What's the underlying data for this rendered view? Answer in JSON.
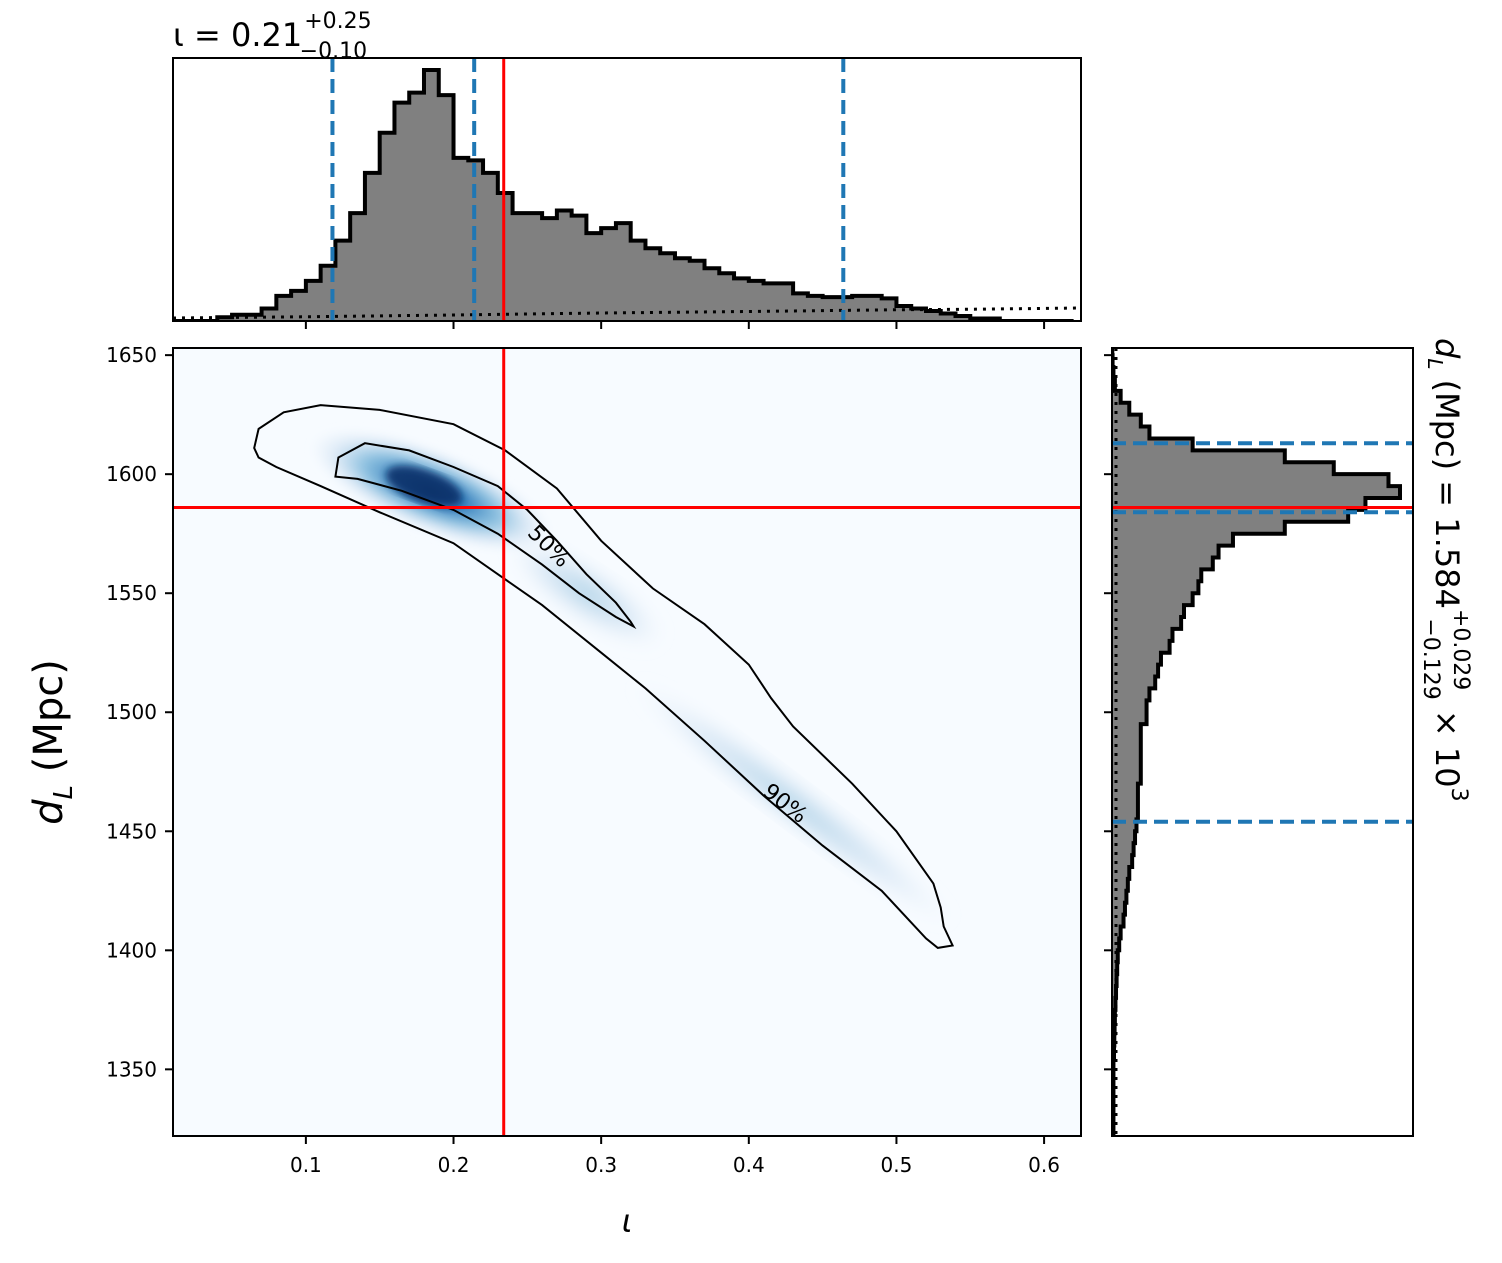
{
  "chart_data": {
    "type": "corner",
    "top_title": {
      "main": "ι = 0.21",
      "sup": "+0.25",
      "sub": "−0.10"
    },
    "right_title": {
      "prefix": "d",
      "subscript": "L",
      "text": " (Mpc) = 1.584",
      "sup": "+0.029",
      "sub": "−0.129",
      "suffix": " × 10",
      "exp": "3"
    },
    "xlabel": "ι",
    "ylabel": {
      "main": "d",
      "subscript": "L",
      "unit": " (Mpc)"
    },
    "xlim": [
      0.01,
      0.625
    ],
    "ylim": [
      1322,
      1653
    ],
    "xticks": [
      0.1,
      0.2,
      0.3,
      0.4,
      0.5,
      0.6
    ],
    "xtick_labels": [
      "0.1",
      "0.2",
      "0.3",
      "0.4",
      "0.5",
      "0.6"
    ],
    "yticks": [
      1350,
      1400,
      1450,
      1500,
      1550,
      1600,
      1650
    ],
    "ytick_labels": [
      "1350",
      "1400",
      "1450",
      "1500",
      "1550",
      "1600",
      "1650"
    ],
    "injection": {
      "iota": 0.234,
      "dL": 1586
    },
    "iota_quantiles": [
      0.118,
      0.214,
      0.464
    ],
    "dL_quantiles": [
      1454,
      1584,
      1613
    ],
    "iota_hist": {
      "bin_edges": [
        0.01,
        0.02,
        0.03,
        0.04,
        0.05,
        0.06,
        0.07,
        0.08,
        0.09,
        0.1,
        0.11,
        0.12,
        0.13,
        0.14,
        0.15,
        0.16,
        0.17,
        0.18,
        0.19,
        0.2,
        0.21,
        0.22,
        0.23,
        0.24,
        0.25,
        0.26,
        0.27,
        0.28,
        0.29,
        0.3,
        0.31,
        0.32,
        0.33,
        0.34,
        0.35,
        0.36,
        0.37,
        0.38,
        0.39,
        0.4,
        0.41,
        0.42,
        0.43,
        0.44,
        0.45,
        0.46,
        0.47,
        0.48,
        0.49,
        0.5,
        0.51,
        0.52,
        0.53,
        0.54,
        0.55,
        0.56,
        0.57,
        0.58,
        0.59,
        0.6,
        0.61,
        0.62
      ],
      "counts": [
        0,
        0,
        0,
        0.015,
        0.025,
        0.025,
        0.05,
        0.1,
        0.12,
        0.16,
        0.22,
        0.32,
        0.43,
        0.59,
        0.75,
        0.87,
        0.91,
        1.0,
        0.9,
        0.65,
        0.64,
        0.59,
        0.51,
        0.43,
        0.43,
        0.41,
        0.44,
        0.42,
        0.35,
        0.37,
        0.39,
        0.32,
        0.29,
        0.27,
        0.25,
        0.24,
        0.21,
        0.19,
        0.17,
        0.16,
        0.15,
        0.15,
        0.11,
        0.1,
        0.095,
        0.095,
        0.1,
        0.1,
        0.09,
        0.06,
        0.05,
        0.04,
        0.03,
        0.02,
        0.01,
        0.01,
        0,
        0,
        0,
        0,
        0
      ]
    },
    "iota_prior_dotted": {
      "x": [
        0.01,
        0.1,
        0.2,
        0.3,
        0.4,
        0.5,
        0.55,
        0.625
      ],
      "y": [
        0,
        0.005,
        0.012,
        0.02,
        0.026,
        0.033,
        0.035,
        0.04
      ]
    },
    "dL_hist": {
      "bin_edges": [
        1320,
        1325,
        1330,
        1335,
        1340,
        1345,
        1350,
        1355,
        1360,
        1365,
        1370,
        1375,
        1380,
        1385,
        1390,
        1395,
        1400,
        1405,
        1410,
        1415,
        1420,
        1425,
        1430,
        1435,
        1440,
        1445,
        1450,
        1455,
        1460,
        1465,
        1470,
        1475,
        1480,
        1485,
        1490,
        1495,
        1500,
        1505,
        1510,
        1515,
        1520,
        1525,
        1530,
        1535,
        1540,
        1545,
        1550,
        1555,
        1560,
        1565,
        1570,
        1575,
        1580,
        1585,
        1590,
        1595,
        1600,
        1605,
        1610,
        1615,
        1620,
        1625,
        1630,
        1635,
        1640,
        1645,
        1650,
        1655
      ],
      "counts": [
        0.005,
        0.005,
        0.005,
        0.005,
        0.005,
        0.005,
        0.005,
        0.007,
        0.008,
        0.009,
        0.01,
        0.012,
        0.014,
        0.016,
        0.018,
        0.02,
        0.025,
        0.03,
        0.04,
        0.045,
        0.05,
        0.055,
        0.06,
        0.07,
        0.075,
        0.08,
        0.085,
        0.09,
        0.09,
        0.09,
        0.1,
        0.1,
        0.1,
        0.1,
        0.1,
        0.12,
        0.12,
        0.13,
        0.15,
        0.16,
        0.17,
        0.2,
        0.21,
        0.24,
        0.25,
        0.28,
        0.3,
        0.31,
        0.35,
        0.37,
        0.42,
        0.6,
        0.82,
        0.88,
        1.0,
        0.96,
        0.77,
        0.6,
        0.28,
        0.13,
        0.1,
        0.06,
        0.03,
        0.01,
        0.005,
        0.002,
        0.001
      ]
    },
    "contours": [
      {
        "label": "90%",
        "label_at": {
          "iota": 0.425,
          "dL": 1462
        },
        "label_angle": 38,
        "points": [
          [
            0.065,
            1611
          ],
          [
            0.068,
            1619
          ],
          [
            0.085,
            1626
          ],
          [
            0.11,
            1629
          ],
          [
            0.15,
            1627
          ],
          [
            0.2,
            1621
          ],
          [
            0.235,
            1610
          ],
          [
            0.27,
            1594
          ],
          [
            0.3,
            1572
          ],
          [
            0.335,
            1552
          ],
          [
            0.37,
            1537
          ],
          [
            0.4,
            1520
          ],
          [
            0.415,
            1506
          ],
          [
            0.43,
            1494
          ],
          [
            0.47,
            1470
          ],
          [
            0.5,
            1450
          ],
          [
            0.525,
            1428
          ],
          [
            0.53,
            1418
          ],
          [
            0.532,
            1410
          ],
          [
            0.538,
            1402
          ],
          [
            0.528,
            1401
          ],
          [
            0.52,
            1405
          ],
          [
            0.49,
            1425
          ],
          [
            0.45,
            1444
          ],
          [
            0.41,
            1465
          ],
          [
            0.37,
            1488
          ],
          [
            0.33,
            1510
          ],
          [
            0.3,
            1525
          ],
          [
            0.26,
            1545
          ],
          [
            0.23,
            1558
          ],
          [
            0.2,
            1571
          ],
          [
            0.15,
            1584
          ],
          [
            0.11,
            1595
          ],
          [
            0.08,
            1603
          ],
          [
            0.068,
            1607
          ],
          [
            0.065,
            1611
          ]
        ]
      },
      {
        "label": "50%",
        "label_at": {
          "iota": 0.265,
          "dL": 1570
        },
        "label_angle": 45,
        "points": [
          [
            0.12,
            1599
          ],
          [
            0.122,
            1607
          ],
          [
            0.14,
            1613
          ],
          [
            0.17,
            1610
          ],
          [
            0.2,
            1603
          ],
          [
            0.23,
            1595
          ],
          [
            0.25,
            1585
          ],
          [
            0.27,
            1572
          ],
          [
            0.29,
            1558
          ],
          [
            0.31,
            1546
          ],
          [
            0.32,
            1538
          ],
          [
            0.322,
            1536
          ],
          [
            0.31,
            1540
          ],
          [
            0.285,
            1550
          ],
          [
            0.26,
            1562
          ],
          [
            0.23,
            1575
          ],
          [
            0.2,
            1585
          ],
          [
            0.165,
            1593
          ],
          [
            0.135,
            1598
          ],
          [
            0.12,
            1599
          ]
        ]
      }
    ]
  }
}
